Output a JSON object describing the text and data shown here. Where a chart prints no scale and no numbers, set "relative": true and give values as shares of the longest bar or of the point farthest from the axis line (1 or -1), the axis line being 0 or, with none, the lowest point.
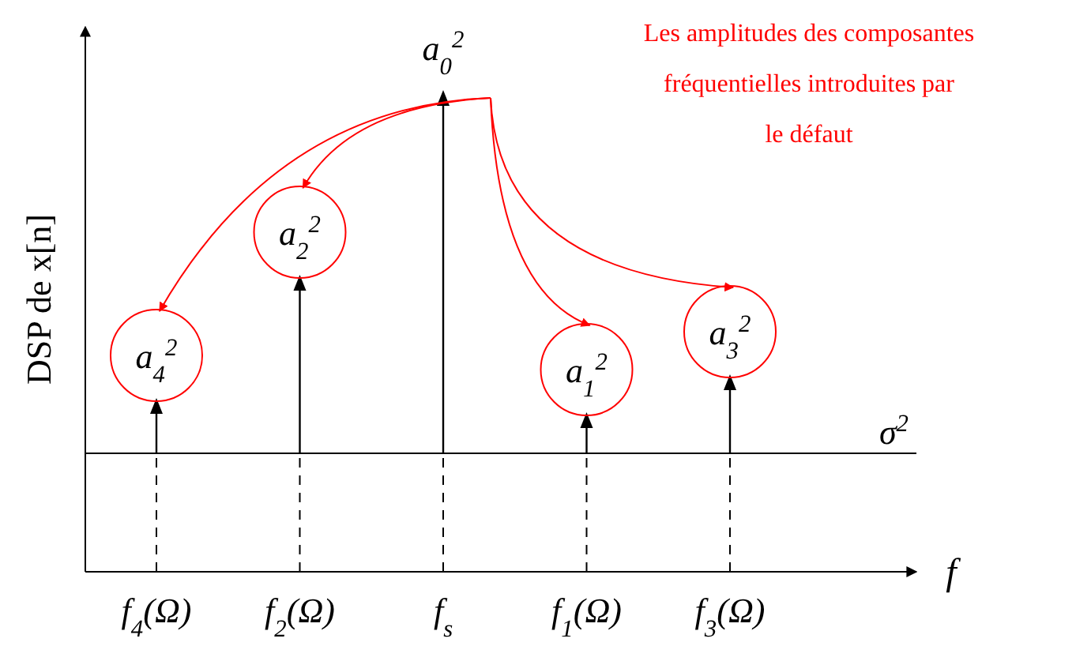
{
  "chart_data": {
    "type": "lollipop",
    "relative": true,
    "marker": "triangle",
    "categories": [
      "f$_{4}$(Ω)",
      "f$_{2}$(Ω)",
      "f$_{s}$",
      "f$_{1}$(Ω)",
      "f$_{3}$(Ω)"
    ],
    "series": [
      {
        "color": "#000000",
        "values": [
          0.35,
          0.61,
          1,
          0.32,
          0.4
        ]
      }
    ],
    "xlabel": "f",
    "ylabel": "DSP de x[n]",
    "ref_lines": [
      {
        "axis": "y",
        "value": 0.25,
        "label": "σ$^{2}$",
        "color": "#000000"
      }
    ],
    "annotations": [
      {
        "text": "a$_{4}$$^{2}$",
        "x": "f$_{4}$(Ω)",
        "y": 0.35
      },
      {
        "text": "a$_{2}$$^{2}$",
        "x": "f$_{2}$(Ω)",
        "y": 0.61
      },
      {
        "text": "a$_{0}$$^{2}$",
        "x": "f$_{s}$",
        "y": 1
      },
      {
        "text": "a$_{1}$$^{2}$",
        "x": "f$_{1}$(Ω)",
        "y": 0.32
      },
      {
        "text": "a$_{3}$$^{2}$",
        "x": "f$_{3}$(Ω)",
        "y": 0.4
      },
      "Les amplitudes des composantes fréquentielles introduites par le défaut"
    ]
  }
}
